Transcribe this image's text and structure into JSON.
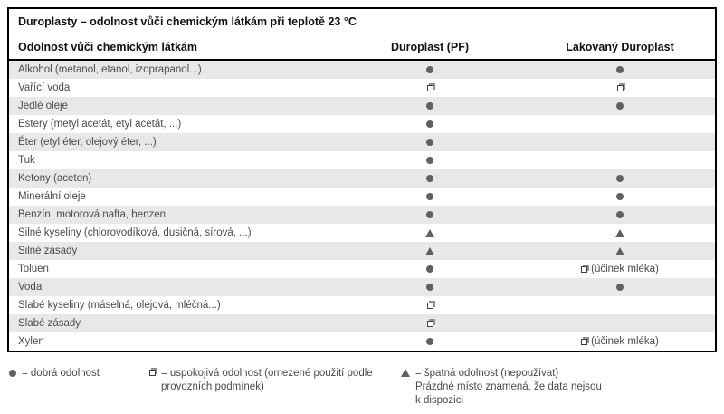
{
  "title": "Duroplasty – odolnost vůči chemickým látkám při teplotě 23 °C",
  "columns": {
    "substance": "Odolnost vůči chemickým látkám",
    "pf": "Duroplast (PF)",
    "lacquered": "Lakovaný Duroplast"
  },
  "symbol_legend_key": {
    "good": "filled-circle = dobrá odolnost",
    "fair": "shadowed-square = uspokojivá odolnost",
    "poor": "filled-triangle = špatná odolnost",
    "none": "blank = data nejsou k dispozici"
  },
  "rows": [
    {
      "substance": "Alkohol (metanol, etanol, izoprapanol...)",
      "pf": "good",
      "lacquered": "good"
    },
    {
      "substance": "Vařící voda",
      "pf": "fair",
      "lacquered": "fair"
    },
    {
      "substance": "Jedlé oleje",
      "pf": "good",
      "lacquered": "good"
    },
    {
      "substance": "Estery (metyl acetát, etyl acetát, ...)",
      "pf": "good",
      "lacquered": "none"
    },
    {
      "substance": "Éter (etyl éter, olejový éter, ...)",
      "pf": "good",
      "lacquered": "none"
    },
    {
      "substance": "Tuk",
      "pf": "good",
      "lacquered": "none"
    },
    {
      "substance": "Ketony (aceton)",
      "pf": "good",
      "lacquered": "good"
    },
    {
      "substance": "Minerální oleje",
      "pf": "good",
      "lacquered": "good"
    },
    {
      "substance": "Benzín, motorová nafta, benzen",
      "pf": "good",
      "lacquered": "good"
    },
    {
      "substance": "Silné kyseliny (chlorovodíková, dusičná, sírová, ...)",
      "pf": "poor",
      "lacquered": "poor"
    },
    {
      "substance": "Silné zásady",
      "pf": "poor",
      "lacquered": "poor"
    },
    {
      "substance": "Toluen",
      "pf": "good",
      "lacquered": "fair",
      "lacquered_note": "(účinek mléka)"
    },
    {
      "substance": "Voda",
      "pf": "good",
      "lacquered": "good"
    },
    {
      "substance": "Slabé kyseliny (máselná, olejová, mléčná...)",
      "pf": "fair",
      "lacquered": "none"
    },
    {
      "substance": "Slabé zásady",
      "pf": "fair",
      "lacquered": "none"
    },
    {
      "substance": "Xylen",
      "pf": "good",
      "lacquered": "fair",
      "lacquered_note": "(účinek mléka)"
    }
  ],
  "legend": [
    {
      "symbol": "good",
      "lines": [
        "= dobrá odolnost"
      ]
    },
    {
      "symbol": "fair",
      "lines": [
        "= uspokojivá odolnost (omezené použití podle",
        "provozních podmínek)"
      ]
    },
    {
      "symbol": "poor",
      "lines": [
        "= špatná odolnost (nepoužívat)",
        "Prázdné místo znamená, že data nejsou",
        "k dispozici"
      ]
    }
  ],
  "colors": {
    "stripe": "#e8e8e8",
    "symbol": "#606060",
    "body_text": "#4a4a4a",
    "heading_text": "#111111",
    "border": "#000000"
  }
}
